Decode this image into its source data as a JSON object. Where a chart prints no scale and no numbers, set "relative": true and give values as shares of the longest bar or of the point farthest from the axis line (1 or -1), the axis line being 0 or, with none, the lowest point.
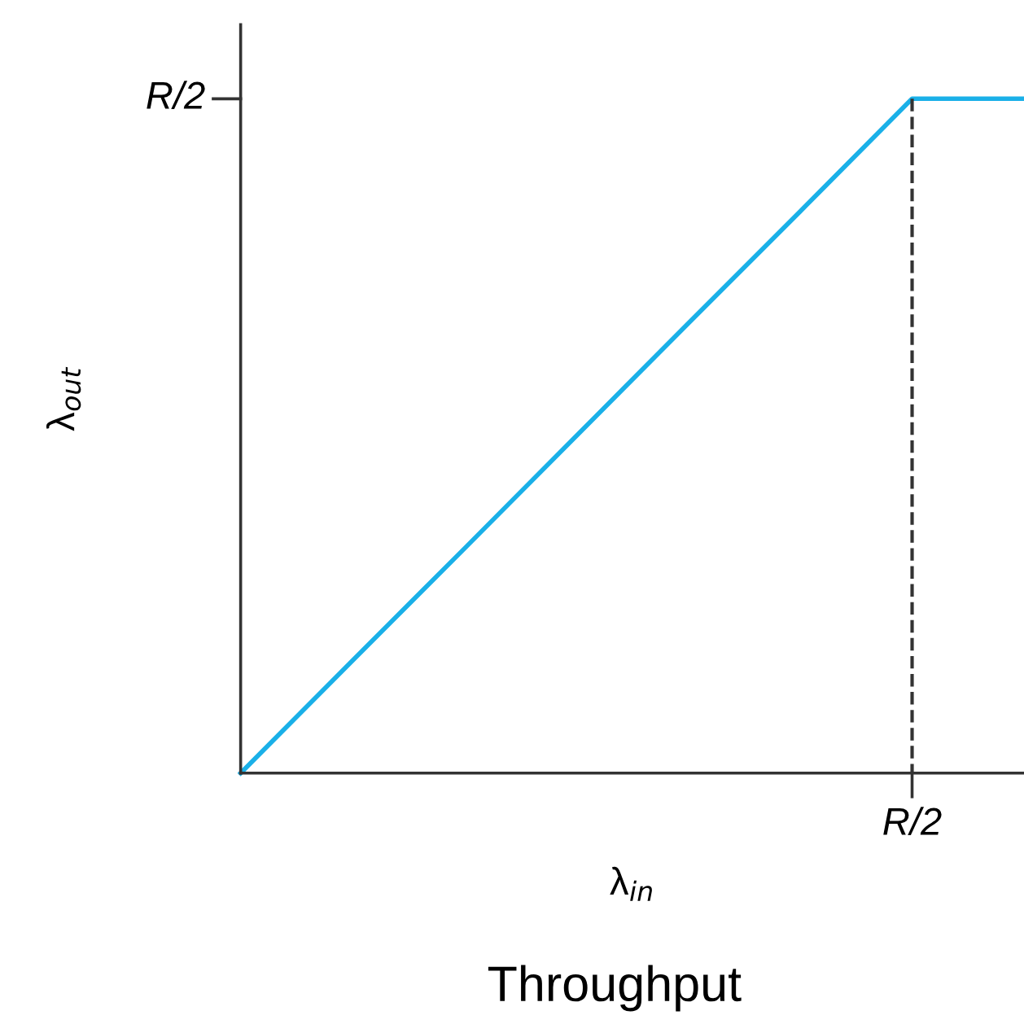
{
  "chart_data": {
    "type": "line",
    "title": "Throughput",
    "xlabel": "λ$_{in}$",
    "ylabel": "λ$_{out}$",
    "relative": true,
    "categories": [
      null,
      null,
      null,
      null,
      null,
      null,
      null,
      null
    ],
    "series": [
      {
        "color": "#1ab0e8",
        "values": [
          0,
          0.167,
          0.333,
          0.5,
          0.667,
          0.833,
          1,
          1
        ]
      }
    ],
    "annotations": [
      "R/2",
      "R/2"
    ],
    "legend": false,
    "marker": "none",
    "line_style": "solid"
  }
}
